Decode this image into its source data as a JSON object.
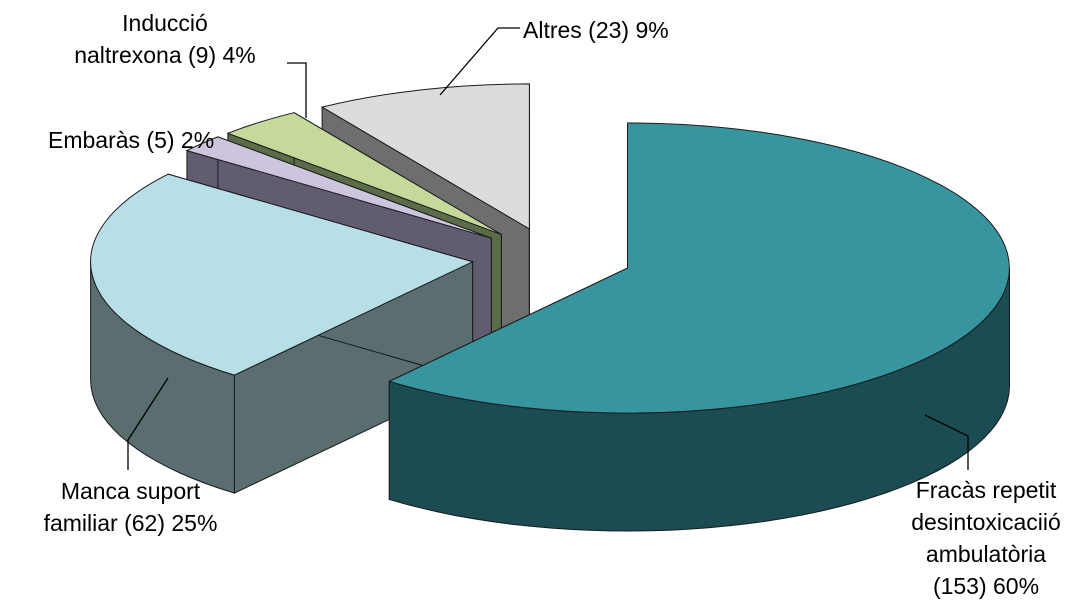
{
  "chart_data": {
    "type": "pie",
    "style": "3d-exploded",
    "slices": [
      {
        "name": "Fracàs repetit desintoxicaciió ambulatòria",
        "count": 153,
        "percent": 60,
        "label_lines": [
          "Fracàs repetit",
          "desintoxicaciió",
          "ambulatòria",
          "(153) 60%"
        ],
        "top_color": "#36959E",
        "side_color": "#1C4C53"
      },
      {
        "name": "Manca suport familiar",
        "count": 62,
        "percent": 25,
        "label_lines": [
          "Manca suport",
          "familiar (62)  25%"
        ],
        "top_color": "#B8DEE8",
        "side_color": "#5A6E70"
      },
      {
        "name": "Embaràs",
        "count": 5,
        "percent": 2,
        "label_lines": [
          "Embaràs (5) 2%"
        ],
        "top_color": "#CDC4DE",
        "side_color": "#625C70"
      },
      {
        "name": "Inducció naltrexona",
        "count": 9,
        "percent": 4,
        "label_lines": [
          "Inducció",
          "naltrexona (9) 4%"
        ],
        "top_color": "#C4D99A",
        "side_color": "#5A6D48"
      },
      {
        "name": "Altres",
        "count": 23,
        "percent": 9,
        "label_lines": [
          "Altres (23) 9%"
        ],
        "top_color": "#DCDCDC",
        "side_color": "#6E6E6E"
      }
    ],
    "legend": "none",
    "title": ""
  }
}
